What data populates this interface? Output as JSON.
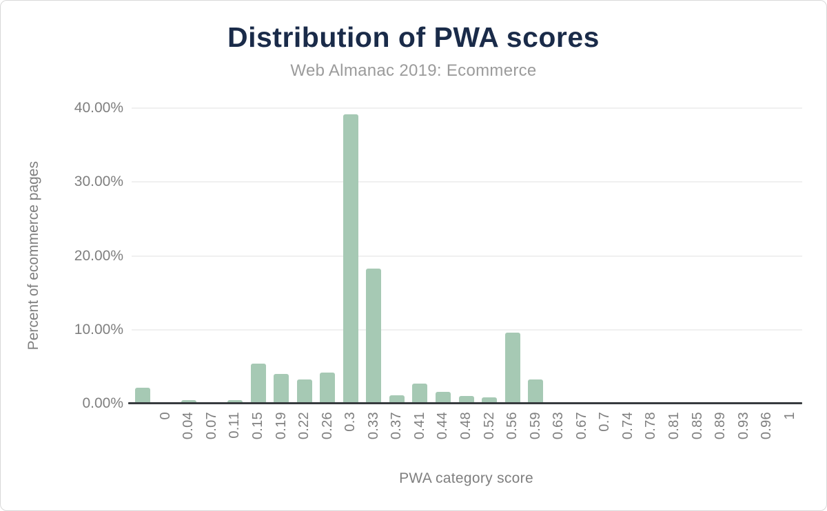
{
  "colors": {
    "bar": "#a6c9b4",
    "title": "#1a2b49",
    "subtitle": "#9b9b9b",
    "tick_text": "#7f7f7f",
    "gridline": "#f0f0f0",
    "axis_line": "#363a3e",
    "background": "#ffffff"
  },
  "chart_data": {
    "type": "bar",
    "title": "Distribution of PWA scores",
    "subtitle": "Web Almanac 2019: Ecommerce",
    "xlabel": "PWA category score",
    "ylabel": "Percent of ecommerce pages",
    "ylim": [
      0,
      40
    ],
    "grid": true,
    "legend": "none",
    "yticks": [
      {
        "value": 0,
        "label": "0.00%"
      },
      {
        "value": 10,
        "label": "10.00%"
      },
      {
        "value": 20,
        "label": "20.00%"
      },
      {
        "value": 30,
        "label": "30.00%"
      },
      {
        "value": 40,
        "label": "40.00%"
      }
    ],
    "categories": [
      "",
      "0",
      "0.04",
      "0.07",
      "0.11",
      "0.15",
      "0.19",
      "0.22",
      "0.26",
      "0.3",
      "0.33",
      "0.37",
      "0.41",
      "0.44",
      "0.48",
      "0.52",
      "0.56",
      "0.59",
      "0.63",
      "0.67",
      "0.7",
      "0.74",
      "0.78",
      "0.81",
      "0.85",
      "0.89",
      "0.93",
      "0.96",
      "1"
    ],
    "values": [
      2.1,
      0,
      0.5,
      0,
      0.5,
      5.4,
      4.0,
      3.3,
      4.2,
      39.2,
      18.3,
      1.1,
      2.7,
      1.6,
      1.0,
      0.8,
      9.6,
      3.3,
      0.2,
      0,
      0.2,
      0.2,
      0,
      0.2,
      0,
      0,
      0,
      0,
      0
    ]
  }
}
